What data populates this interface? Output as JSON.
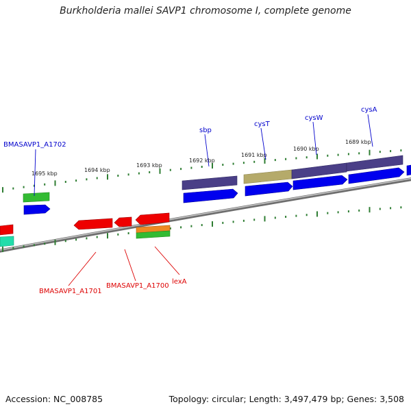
{
  "title": "Burkholderia mallei SAVP1 chromosome I, complete genome",
  "footer": {
    "accession": "Accession: NC_008785",
    "topology": "Topology: circular; Length: 3,497,479 bp; Genes: 3,508"
  },
  "kbp_labels": [
    "1695 kbp",
    "1694 kbp",
    "1693 kbp",
    "1692 kbp",
    "1691 kbp",
    "1690 kbp",
    "1689 kbp"
  ],
  "gene_labels": {
    "bmasavp1_a1702": "BMASAVP1_A1702",
    "sbp": "sbp",
    "cyst": "cysT",
    "cysw": "cysW",
    "cysa": "cysA",
    "bmasavp1_a1701": "BMASAVP1_A1701",
    "bmasavp1_a1700": "BMASAVP1_A1700",
    "lexa": "lexA"
  },
  "colors": {
    "forward_label": "#0000cc",
    "reverse_label": "#dd0000",
    "backbone": "#888888",
    "tick": "#2e7d32",
    "cds_blue": "#0000ee",
    "cds_red": "#ee0000",
    "cds_green": "#33bb33",
    "cog_purple": "#4a3f87",
    "cog_olive": "#b5aa6a",
    "cog_orange": "#ee8822",
    "cog_teal": "#22ddaa"
  }
}
